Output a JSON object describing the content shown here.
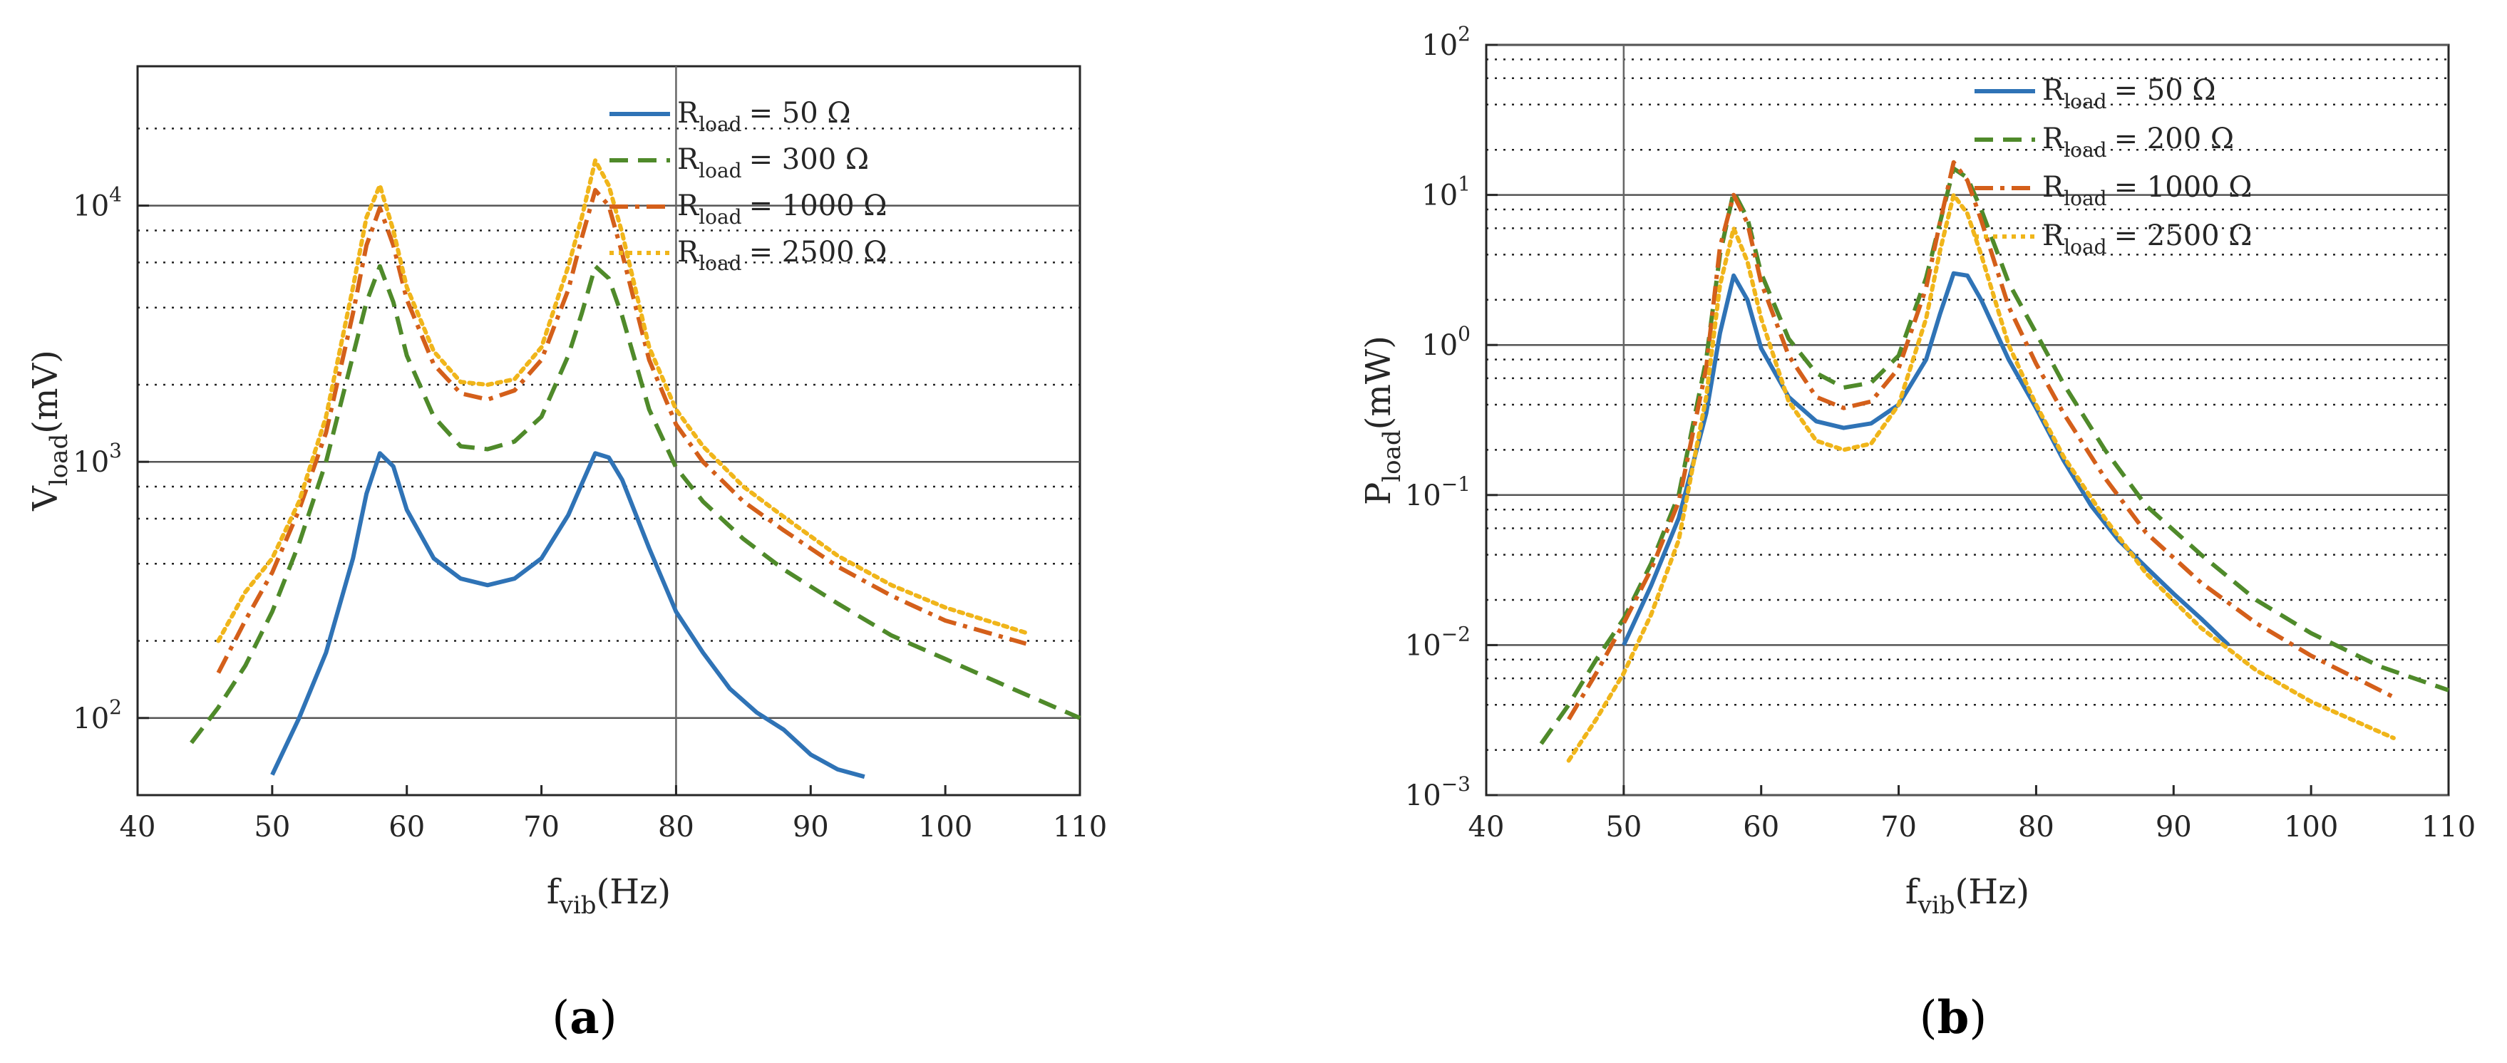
{
  "chart_data": [
    {
      "id": "a",
      "type": "line",
      "caption": "(a)",
      "caption_letter": "a",
      "xlabel": "f",
      "xlabel_sub": "vib",
      "xlabel_unit": "(Hz)",
      "ylabel": "V",
      "ylabel_sub": "load",
      "ylabel_unit": "(mV)",
      "xlim": [
        40,
        110
      ],
      "ylim": [
        50,
        35000
      ],
      "yscale": "log",
      "xticks": [
        40,
        50,
        60,
        70,
        80,
        90,
        100,
        110
      ],
      "yticks": [
        {
          "base": "10",
          "exp": "2",
          "value": 100
        },
        {
          "base": "10",
          "exp": "3",
          "value": 1000
        },
        {
          "base": "10",
          "exp": "4",
          "value": 10000
        }
      ],
      "legend_prefix": "R",
      "legend_sub": "load",
      "legend_placement": "top-right",
      "series": [
        {
          "label": "= 50 Ω",
          "color": "#2f73b6",
          "dash": "solid",
          "x": [
            50,
            52,
            54,
            56,
            57,
            58,
            59,
            60,
            62,
            64,
            66,
            68,
            70,
            72,
            73,
            74,
            75,
            76,
            78,
            80,
            82,
            84,
            86,
            88,
            90,
            92,
            94
          ],
          "y": [
            60,
            100,
            180,
            420,
            750,
            1080,
            960,
            650,
            420,
            350,
            330,
            350,
            420,
            620,
            820,
            1080,
            1040,
            850,
            460,
            260,
            180,
            130,
            105,
            90,
            72,
            63,
            59
          ]
        },
        {
          "label": "= 300 Ω",
          "color": "#4f8a2a",
          "dash": "dashed",
          "x": [
            44,
            46,
            48,
            50,
            52,
            54,
            56,
            57,
            58,
            59,
            60,
            62,
            64,
            66,
            68,
            70,
            72,
            73,
            74,
            75,
            76,
            78,
            80,
            82,
            85,
            88,
            92,
            96,
            100,
            105,
            110
          ],
          "y": [
            80,
            110,
            160,
            260,
            480,
            1000,
            2600,
            4200,
            5800,
            4200,
            2600,
            1500,
            1150,
            1120,
            1200,
            1500,
            2600,
            3800,
            5800,
            5200,
            3700,
            1600,
            950,
            700,
            500,
            380,
            280,
            210,
            170,
            130,
            100
          ]
        },
        {
          "label": "= 1000 Ω",
          "color": "#d45f1a",
          "dash": "dashdot",
          "x": [
            46,
            48,
            50,
            52,
            54,
            56,
            57,
            58,
            59,
            60,
            62,
            64,
            66,
            68,
            70,
            72,
            73,
            74,
            75,
            76,
            78,
            80,
            82,
            85,
            88,
            92,
            96,
            100,
            106
          ],
          "y": [
            150,
            240,
            370,
            650,
            1300,
            3800,
            7000,
            9800,
            7000,
            4300,
            2400,
            1850,
            1750,
            1900,
            2500,
            4700,
            7500,
            11500,
            10000,
            6500,
            2500,
            1400,
            1000,
            700,
            540,
            390,
            300,
            240,
            195
          ]
        },
        {
          "label": "= 2500 Ω",
          "color": "#f0b51a",
          "dash": "dotted",
          "x": [
            46,
            48,
            50,
            52,
            54,
            56,
            57,
            58,
            59,
            60,
            62,
            64,
            66,
            68,
            70,
            72,
            73,
            74,
            75,
            76,
            78,
            80,
            82,
            85,
            88,
            92,
            96,
            100,
            106
          ],
          "y": [
            200,
            310,
            420,
            700,
            1500,
            4800,
            9000,
            12000,
            8000,
            4800,
            2700,
            2050,
            2000,
            2100,
            2800,
            5800,
            9000,
            15000,
            12000,
            7800,
            2800,
            1600,
            1150,
            800,
            610,
            430,
            330,
            270,
            215
          ]
        }
      ]
    },
    {
      "id": "b",
      "type": "line",
      "caption": "(b)",
      "caption_letter": "b",
      "xlabel": "f",
      "xlabel_sub": "vib",
      "xlabel_unit": "(Hz)",
      "ylabel": "P",
      "ylabel_sub": "load",
      "ylabel_unit": "(mW)",
      "xlim": [
        40,
        110
      ],
      "ylim": [
        0.001,
        100
      ],
      "yscale": "log",
      "xticks": [
        40,
        50,
        60,
        70,
        80,
        90,
        100,
        110
      ],
      "yticks": [
        {
          "base": "10",
          "exp": "−3",
          "value": 0.001
        },
        {
          "base": "10",
          "exp": "−2",
          "value": 0.01
        },
        {
          "base": "10",
          "exp": "−1",
          "value": 0.1
        },
        {
          "base": "10",
          "exp": "0",
          "value": 1
        },
        {
          "base": "10",
          "exp": "1",
          "value": 10
        },
        {
          "base": "10",
          "exp": "2",
          "value": 100
        }
      ],
      "legend_prefix": "R",
      "legend_sub": "load",
      "legend_placement": "top-right",
      "series": [
        {
          "label": "= 50 Ω",
          "color": "#2f73b6",
          "dash": "solid",
          "x": [
            50,
            52,
            54,
            56,
            57,
            58,
            59,
            60,
            62,
            64,
            66,
            68,
            70,
            72,
            73,
            74,
            75,
            76,
            78,
            80,
            82,
            84,
            86,
            88,
            90,
            92,
            94
          ],
          "y": [
            0.01,
            0.025,
            0.07,
            0.35,
            1.2,
            2.9,
            2.0,
            0.95,
            0.45,
            0.31,
            0.28,
            0.3,
            0.4,
            0.8,
            1.6,
            3.0,
            2.9,
            2.0,
            0.8,
            0.38,
            0.17,
            0.085,
            0.05,
            0.033,
            0.022,
            0.015,
            0.01
          ]
        },
        {
          "label": "= 200 Ω",
          "color": "#4f8a2a",
          "dash": "dashed",
          "x": [
            44,
            46,
            48,
            50,
            52,
            54,
            56,
            57,
            58,
            59,
            60,
            62,
            64,
            66,
            68,
            70,
            72,
            73,
            74,
            75,
            76,
            78,
            80,
            82,
            85,
            88,
            92,
            96,
            100,
            105,
            110
          ],
          "y": [
            0.0022,
            0.004,
            0.008,
            0.015,
            0.035,
            0.1,
            0.8,
            4.0,
            10.5,
            7.0,
            3.0,
            1.1,
            0.65,
            0.52,
            0.56,
            0.85,
            2.8,
            6.5,
            15,
            13,
            8.0,
            2.6,
            1.2,
            0.55,
            0.2,
            0.085,
            0.04,
            0.02,
            0.012,
            0.0072,
            0.005
          ]
        },
        {
          "label": "= 1000 Ω",
          "color": "#d45f1a",
          "dash": "dashdot",
          "x": [
            46,
            48,
            50,
            52,
            54,
            56,
            57,
            58,
            59,
            60,
            62,
            64,
            66,
            68,
            70,
            72,
            73,
            74,
            75,
            76,
            78,
            80,
            82,
            85,
            88,
            92,
            96,
            100,
            106
          ],
          "y": [
            0.0032,
            0.0065,
            0.014,
            0.032,
            0.09,
            0.7,
            4.5,
            10.0,
            6.5,
            2.6,
            0.85,
            0.45,
            0.38,
            0.42,
            0.7,
            2.4,
            6.5,
            16.5,
            12.5,
            6.8,
            1.8,
            0.75,
            0.35,
            0.13,
            0.056,
            0.026,
            0.014,
            0.0085,
            0.0045
          ]
        },
        {
          "label": "= 2500 Ω",
          "color": "#f0b51a",
          "dash": "dotted",
          "x": [
            46,
            48,
            50,
            52,
            54,
            56,
            57,
            58,
            59,
            60,
            62,
            64,
            66,
            68,
            70,
            72,
            73,
            74,
            75,
            76,
            78,
            80,
            82,
            85,
            88,
            92,
            96,
            100,
            106
          ],
          "y": [
            0.0017,
            0.0032,
            0.0065,
            0.016,
            0.05,
            0.45,
            2.5,
            6.0,
            3.6,
            1.5,
            0.42,
            0.23,
            0.2,
            0.22,
            0.4,
            1.5,
            4.2,
            10.0,
            7.5,
            4.0,
            1.0,
            0.4,
            0.18,
            0.07,
            0.03,
            0.013,
            0.0068,
            0.0042,
            0.0024
          ]
        }
      ]
    }
  ]
}
